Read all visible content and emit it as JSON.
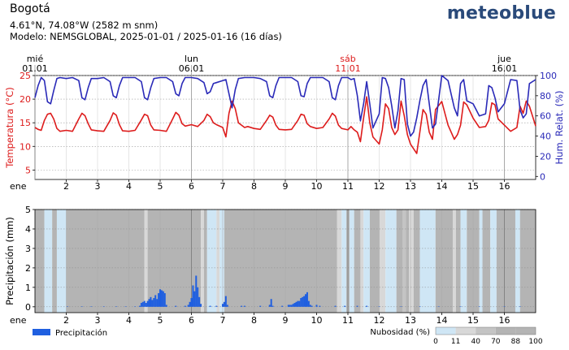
{
  "header": {
    "location": "Bogotá",
    "coords": "4.61°N, 74.08°W (2582 m snm)",
    "model": "Modelo: NEMSGLOBAL, 2025-01-01 / 2025-01-16 (16 días)",
    "brand": "meteoblue"
  },
  "colors": {
    "temperature": "#dd1c1c",
    "humidity": "#2a2ab8",
    "precip_bar": "#1f5fe0",
    "cloud_0": "#ffffff",
    "cloud_11": "#cfe6f5",
    "cloud_40": "#d8d8d8",
    "cloud_70": "#c4c4c4",
    "cloud_88": "#b4b4b4",
    "weekend_day": "#dd1c1c"
  },
  "chart_data": [
    {
      "type": "line",
      "x_unit": "days of January 2025",
      "xlim": [
        1.0,
        17.0
      ],
      "month_label": "ene",
      "x_tick_labels": [
        "2",
        "3",
        "4",
        "5",
        "6",
        "7",
        "8",
        "9",
        "10",
        "11",
        "12",
        "13",
        "14",
        "15",
        "16"
      ],
      "top_day_markers": [
        {
          "day": "mié",
          "date": "01.01",
          "x": 1.0,
          "weekend": false
        },
        {
          "day": "lun",
          "date": "06.01",
          "x": 6.0,
          "weekend": false
        },
        {
          "day": "sáb",
          "date": "11.01",
          "x": 11.0,
          "weekend": true
        },
        {
          "day": "jue",
          "date": "16.01",
          "x": 16.0,
          "weekend": false
        }
      ],
      "y_left": {
        "label": "Temperatura (°C)",
        "lim": [
          3,
          25
        ],
        "ticks": [
          5,
          10,
          15,
          20,
          25
        ]
      },
      "y_right": {
        "label": "Hum. Relat. (%)",
        "lim": [
          -3,
          100
        ],
        "ticks": [
          0,
          20,
          40,
          60,
          80,
          100
        ]
      },
      "series": [
        {
          "axis": "left",
          "x": [
            1.0,
            1.1,
            1.2,
            1.3,
            1.4,
            1.5,
            1.6,
            1.7,
            1.8,
            2.0,
            2.2,
            2.4,
            2.5,
            2.6,
            2.7,
            2.8,
            3.0,
            3.2,
            3.4,
            3.5,
            3.6,
            3.7,
            3.8,
            4.0,
            4.2,
            4.4,
            4.5,
            4.6,
            4.7,
            4.8,
            5.0,
            5.2,
            5.4,
            5.5,
            5.6,
            5.7,
            5.8,
            6.0,
            6.2,
            6.4,
            6.5,
            6.6,
            6.7,
            6.8,
            7.0,
            7.1,
            7.2,
            7.3,
            7.4,
            7.5,
            7.7,
            7.8,
            8.0,
            8.2,
            8.4,
            8.5,
            8.6,
            8.7,
            8.8,
            9.0,
            9.2,
            9.4,
            9.5,
            9.6,
            9.7,
            9.8,
            10.0,
            10.2,
            10.4,
            10.5,
            10.6,
            10.7,
            10.8,
            11.0,
            11.1,
            11.2,
            11.3,
            11.4,
            11.5,
            11.6,
            11.7,
            11.8,
            12.0,
            12.1,
            12.2,
            12.3,
            12.4,
            12.5,
            12.6,
            12.7,
            12.8,
            12.9,
            13.0,
            13.1,
            13.2,
            13.3,
            13.4,
            13.5,
            13.6,
            13.7,
            13.8,
            14.0,
            14.2,
            14.4,
            14.5,
            14.6,
            14.7,
            14.8,
            15.0,
            15.2,
            15.4,
            15.5,
            15.6,
            15.7,
            15.8,
            16.0,
            16.2,
            16.4,
            16.5,
            16.6,
            16.7,
            16.8,
            17.0
          ],
          "y": [
            14.0,
            13.6,
            13.4,
            15.5,
            16.8,
            17.0,
            15.8,
            13.8,
            13.2,
            13.4,
            13.2,
            15.8,
            17.0,
            16.5,
            14.8,
            13.5,
            13.3,
            13.2,
            15.5,
            17.1,
            16.6,
            14.6,
            13.3,
            13.2,
            13.4,
            15.6,
            16.8,
            16.5,
            14.5,
            13.5,
            13.4,
            13.2,
            15.8,
            17.2,
            16.6,
            14.8,
            14.3,
            14.6,
            14.2,
            15.5,
            16.8,
            16.3,
            15.0,
            14.6,
            14.0,
            12.0,
            17.0,
            19.6,
            18.0,
            15.0,
            14.0,
            14.2,
            13.8,
            13.6,
            15.5,
            16.6,
            16.2,
            14.5,
            13.6,
            13.5,
            13.6,
            15.5,
            16.8,
            16.6,
            14.8,
            14.2,
            13.8,
            14.0,
            15.8,
            17.0,
            16.4,
            14.5,
            13.8,
            13.5,
            14.2,
            13.5,
            13.0,
            11.0,
            16.0,
            20.5,
            15.0,
            12.0,
            10.5,
            13.5,
            19.0,
            18.0,
            14.0,
            12.5,
            13.5,
            19.6,
            16.5,
            12.5,
            10.5,
            9.5,
            8.5,
            13.0,
            17.8,
            16.8,
            13.0,
            11.5,
            17.8,
            19.5,
            14.5,
            11.5,
            12.5,
            14.5,
            19.4,
            18.8,
            16.0,
            14.0,
            14.2,
            15.5,
            19.2,
            18.8,
            15.8,
            14.5,
            13.2,
            14.0,
            18.5,
            17.0,
            19.6,
            18.5,
            14.3
          ]
        },
        {
          "axis": "right",
          "x": [
            1.0,
            1.1,
            1.2,
            1.3,
            1.4,
            1.5,
            1.6,
            1.7,
            1.8,
            2.0,
            2.2,
            2.4,
            2.5,
            2.6,
            2.7,
            2.8,
            3.0,
            3.2,
            3.4,
            3.5,
            3.6,
            3.7,
            3.8,
            4.0,
            4.2,
            4.4,
            4.5,
            4.6,
            4.7,
            4.8,
            5.0,
            5.2,
            5.4,
            5.5,
            5.6,
            5.7,
            5.8,
            6.0,
            6.2,
            6.4,
            6.5,
            6.6,
            6.7,
            6.8,
            7.0,
            7.1,
            7.2,
            7.3,
            7.4,
            7.5,
            7.7,
            7.8,
            8.0,
            8.2,
            8.4,
            8.5,
            8.6,
            8.7,
            8.8,
            9.0,
            9.2,
            9.4,
            9.5,
            9.6,
            9.7,
            9.8,
            10.0,
            10.2,
            10.4,
            10.5,
            10.6,
            10.7,
            10.8,
            11.0,
            11.1,
            11.2,
            11.3,
            11.4,
            11.5,
            11.6,
            11.7,
            11.8,
            12.0,
            12.1,
            12.2,
            12.3,
            12.4,
            12.5,
            12.6,
            12.7,
            12.8,
            12.9,
            13.0,
            13.1,
            13.2,
            13.3,
            13.4,
            13.5,
            13.6,
            13.7,
            13.8,
            14.0,
            14.2,
            14.4,
            14.5,
            14.6,
            14.7,
            14.8,
            15.0,
            15.2,
            15.4,
            15.5,
            15.6,
            15.7,
            15.8,
            16.0,
            16.2,
            16.4,
            16.5,
            16.6,
            16.7,
            16.8,
            17.0
          ],
          "y": [
            78,
            90,
            98,
            95,
            74,
            72,
            85,
            97,
            98,
            97,
            98,
            95,
            78,
            76,
            88,
            97,
            97,
            98,
            94,
            80,
            78,
            90,
            98,
            98,
            98,
            94,
            78,
            76,
            88,
            97,
            98,
            98,
            94,
            82,
            80,
            92,
            98,
            98,
            97,
            93,
            82,
            84,
            92,
            93,
            95,
            96,
            82,
            68,
            86,
            97,
            98,
            98,
            98,
            97,
            94,
            80,
            78,
            90,
            98,
            98,
            98,
            94,
            80,
            79,
            92,
            98,
            98,
            98,
            94,
            78,
            76,
            90,
            98,
            98,
            96,
            97,
            80,
            55,
            72,
            94,
            72,
            48,
            62,
            98,
            97,
            88,
            70,
            48,
            65,
            97,
            96,
            52,
            40,
            44,
            58,
            75,
            90,
            96,
            72,
            48,
            52,
            100,
            95,
            68,
            60,
            92,
            96,
            75,
            72,
            60,
            62,
            90,
            88,
            78,
            64,
            72,
            96,
            95,
            66,
            58,
            62,
            92,
            96
          ]
        }
      ]
    },
    {
      "type": "bar",
      "x_unit": "days of January 2025",
      "xlim": [
        1.0,
        17.0
      ],
      "month_label": "ene",
      "x_tick_labels": [
        "2",
        "3",
        "4",
        "5",
        "6",
        "7",
        "8",
        "9",
        "10",
        "11",
        "12",
        "13",
        "14",
        "15",
        "16"
      ],
      "y_label": "Precipitación (mm)",
      "ylim": [
        -0.3,
        5
      ],
      "y_ticks": [
        0,
        1,
        2,
        3,
        4,
        5
      ],
      "legend": {
        "precip_label": "Precipitación",
        "cloud_label": "Nubosidad (%)",
        "cloud_ticks": [
          "0",
          "11",
          "40",
          "70",
          "88",
          "100"
        ]
      },
      "precipitation": {
        "x": [
          2.04,
          2.5,
          2.8,
          3.2,
          3.6,
          3.9,
          4.2,
          4.35,
          4.4,
          4.45,
          4.5,
          4.55,
          4.6,
          4.65,
          4.7,
          4.75,
          4.8,
          4.85,
          4.9,
          4.95,
          5.0,
          5.05,
          5.1,
          5.15,
          5.2,
          5.5,
          5.8,
          5.9,
          5.95,
          6.0,
          6.05,
          6.1,
          6.15,
          6.2,
          6.25,
          6.3,
          6.6,
          6.8,
          7.0,
          7.05,
          7.1,
          7.15,
          7.6,
          7.7,
          8.2,
          8.5,
          8.55,
          8.6,
          8.9,
          9.1,
          9.15,
          9.2,
          9.25,
          9.3,
          9.35,
          9.4,
          9.45,
          9.5,
          9.55,
          9.6,
          9.65,
          9.7,
          9.75,
          9.8,
          9.85,
          10.0,
          10.1,
          10.6,
          10.9,
          11.3,
          11.6,
          12.0,
          12.7,
          13.3,
          13.9,
          14.6,
          15.2,
          16.0,
          16.5
        ],
        "values": [
          0.02,
          0.02,
          0.02,
          0.02,
          0.02,
          0.02,
          0.02,
          0.05,
          0.2,
          0.25,
          0.3,
          0.2,
          0.3,
          0.4,
          0.5,
          0.35,
          0.45,
          0.6,
          0.4,
          0.7,
          0.9,
          0.85,
          0.8,
          0.7,
          0.1,
          0.05,
          0.05,
          0.1,
          0.25,
          0.45,
          1.1,
          0.8,
          1.6,
          1.0,
          0.5,
          0.15,
          0.05,
          0.05,
          0.15,
          0.25,
          0.55,
          0.1,
          0.05,
          0.05,
          0.05,
          0.1,
          0.4,
          0.05,
          0.05,
          0.1,
          0.1,
          0.1,
          0.15,
          0.2,
          0.25,
          0.3,
          0.3,
          0.45,
          0.5,
          0.55,
          0.65,
          0.75,
          0.3,
          0.1,
          0.05,
          0.1,
          0.05,
          0.05,
          0.05,
          0.05,
          0.05,
          0.02,
          0.02,
          0.02,
          0.02,
          0.02,
          0.02,
          0.02,
          0.02
        ]
      },
      "cloud_cover_segments": [
        {
          "from": 1.0,
          "to": 1.3,
          "pct": 88
        },
        {
          "from": 1.3,
          "to": 1.55,
          "pct": 11
        },
        {
          "from": 1.55,
          "to": 1.7,
          "pct": 88
        },
        {
          "from": 1.7,
          "to": 2.0,
          "pct": 11
        },
        {
          "from": 2.0,
          "to": 4.5,
          "pct": 88
        },
        {
          "from": 4.5,
          "to": 4.6,
          "pct": 40
        },
        {
          "from": 4.6,
          "to": 6.3,
          "pct": 88
        },
        {
          "from": 6.3,
          "to": 6.4,
          "pct": 40
        },
        {
          "from": 6.4,
          "to": 6.5,
          "pct": 88
        },
        {
          "from": 6.5,
          "to": 6.8,
          "pct": 11
        },
        {
          "from": 6.8,
          "to": 6.9,
          "pct": 40
        },
        {
          "from": 6.9,
          "to": 7.05,
          "pct": 11
        },
        {
          "from": 7.05,
          "to": 10.65,
          "pct": 88
        },
        {
          "from": 10.65,
          "to": 10.8,
          "pct": 40
        },
        {
          "from": 10.8,
          "to": 10.95,
          "pct": 11
        },
        {
          "from": 10.95,
          "to": 11.05,
          "pct": 88
        },
        {
          "from": 11.05,
          "to": 11.2,
          "pct": 11
        },
        {
          "from": 11.2,
          "to": 11.4,
          "pct": 88
        },
        {
          "from": 11.4,
          "to": 11.5,
          "pct": 40
        },
        {
          "from": 11.5,
          "to": 11.7,
          "pct": 11
        },
        {
          "from": 11.7,
          "to": 12.0,
          "pct": 88
        },
        {
          "from": 12.0,
          "to": 12.2,
          "pct": 40
        },
        {
          "from": 12.2,
          "to": 12.55,
          "pct": 11
        },
        {
          "from": 12.55,
          "to": 12.75,
          "pct": 88
        },
        {
          "from": 12.75,
          "to": 12.85,
          "pct": 70
        },
        {
          "from": 12.85,
          "to": 12.95,
          "pct": 88
        },
        {
          "from": 12.95,
          "to": 13.1,
          "pct": 40
        },
        {
          "from": 13.1,
          "to": 13.3,
          "pct": 88
        },
        {
          "from": 13.3,
          "to": 13.8,
          "pct": 11
        },
        {
          "from": 13.8,
          "to": 14.35,
          "pct": 88
        },
        {
          "from": 14.35,
          "to": 14.45,
          "pct": 40
        },
        {
          "from": 14.45,
          "to": 14.6,
          "pct": 88
        },
        {
          "from": 14.6,
          "to": 14.8,
          "pct": 11
        },
        {
          "from": 14.8,
          "to": 15.2,
          "pct": 88
        },
        {
          "from": 15.2,
          "to": 15.3,
          "pct": 11
        },
        {
          "from": 15.3,
          "to": 15.55,
          "pct": 88
        },
        {
          "from": 15.55,
          "to": 15.75,
          "pct": 11
        },
        {
          "from": 15.75,
          "to": 16.35,
          "pct": 88
        },
        {
          "from": 16.35,
          "to": 16.5,
          "pct": 11
        },
        {
          "from": 16.5,
          "to": 17.0,
          "pct": 88
        }
      ]
    }
  ]
}
